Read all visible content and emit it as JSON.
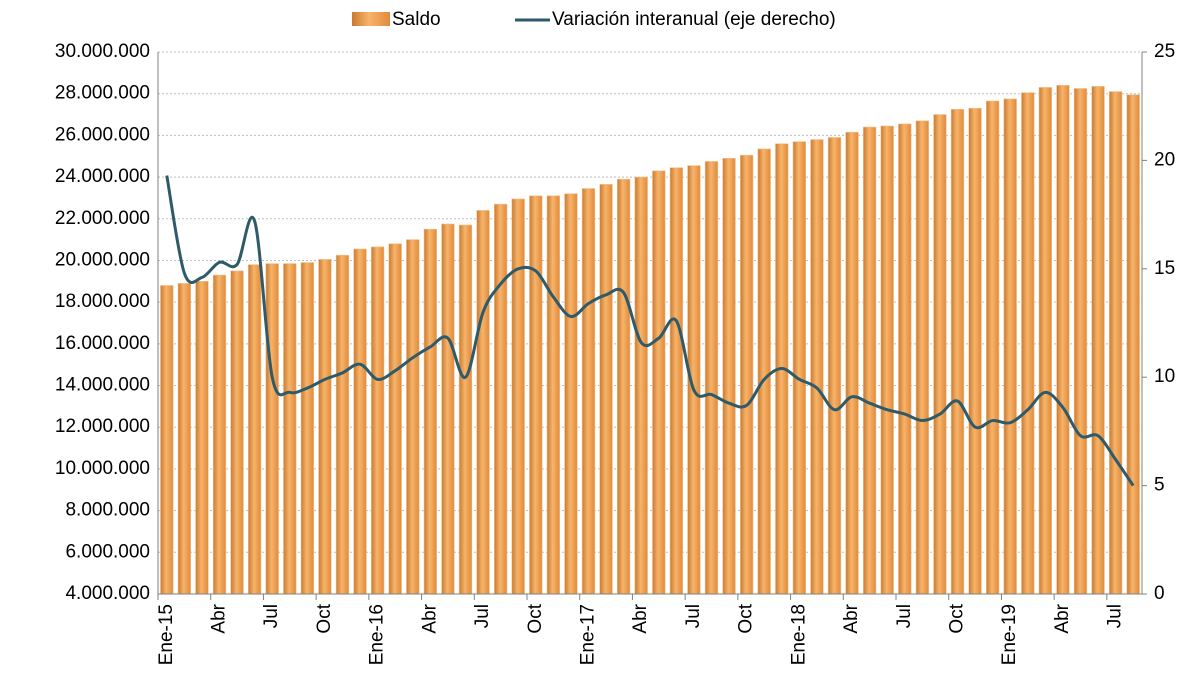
{
  "chart_data": {
    "type": "bar_line",
    "categories": [
      "Ene-15",
      null,
      null,
      "Abr",
      null,
      null,
      "Jul",
      null,
      null,
      "Oct",
      null,
      null,
      "Ene-16",
      null,
      null,
      "Abr",
      null,
      null,
      "Jul",
      null,
      null,
      "Oct",
      null,
      null,
      "Ene-17",
      null,
      null,
      "Abr",
      null,
      null,
      "Jul",
      null,
      null,
      "Oct",
      null,
      null,
      "Ene-18",
      null,
      null,
      "Abr",
      null,
      null,
      "Jul",
      null,
      null,
      "Oct",
      null,
      null,
      "Ene-19",
      null,
      null,
      "Abr",
      null,
      null,
      "Jul",
      null
    ],
    "series": [
      {
        "name": "Saldo",
        "type": "bar",
        "color": "#f0a050",
        "values": [
          18800000,
          18900000,
          19000000,
          19300000,
          19500000,
          19800000,
          19850000,
          19850000,
          19900000,
          20050000,
          20250000,
          20550000,
          20650000,
          20800000,
          21000000,
          21500000,
          21750000,
          21700000,
          22400000,
          22700000,
          22950000,
          23100000,
          23100000,
          23200000,
          23450000,
          23650000,
          23900000,
          24000000,
          24300000,
          24450000,
          24550000,
          24750000,
          24900000,
          25050000,
          25350000,
          25600000,
          25700000,
          25800000,
          25900000,
          26150000,
          26400000,
          26450000,
          26550000,
          26700000,
          27000000,
          27250000,
          27300000,
          27650000,
          27750000,
          28050000,
          28300000,
          28400000,
          28250000,
          28350000,
          28100000,
          27950000
        ]
      },
      {
        "name": "Variación interanual (eje derecho)",
        "type": "line",
        "axis": "y2",
        "color": "#2e5a6a",
        "values": [
          19.3,
          14.8,
          14.6,
          15.3,
          15.2,
          17.2,
          10.0,
          9.3,
          9.5,
          9.9,
          10.2,
          10.6,
          9.9,
          10.3,
          10.9,
          11.4,
          11.8,
          10.0,
          13.0,
          14.3,
          15.0,
          14.9,
          13.7,
          12.8,
          13.4,
          13.8,
          13.9,
          11.6,
          11.8,
          12.6,
          9.4,
          9.2,
          8.8,
          8.7,
          9.9,
          10.4,
          9.9,
          9.5,
          8.5,
          9.1,
          8.8,
          8.5,
          8.3,
          8.0,
          8.3,
          8.9,
          7.7,
          8.0,
          7.9,
          8.5,
          9.3,
          8.6,
          7.3,
          7.3,
          6.2,
          5.0
        ]
      }
    ],
    "ylim": [
      4000000,
      30000000
    ],
    "yticks": [
      {
        "value": 4000000,
        "label": "4.000.000"
      },
      {
        "value": 6000000,
        "label": "6.000.000"
      },
      {
        "value": 8000000,
        "label": "8.000.000"
      },
      {
        "value": 10000000,
        "label": "10.000.000"
      },
      {
        "value": 12000000,
        "label": "12.000.000"
      },
      {
        "value": 14000000,
        "label": "14.000.000"
      },
      {
        "value": 16000000,
        "label": "16.000.000"
      },
      {
        "value": 18000000,
        "label": "18.000.000"
      },
      {
        "value": 20000000,
        "label": "20.000.000"
      },
      {
        "value": 22000000,
        "label": "22.000.000"
      },
      {
        "value": 24000000,
        "label": "24.000.000"
      },
      {
        "value": 26000000,
        "label": "26.000.000"
      },
      {
        "value": 28000000,
        "label": "28.000.000"
      },
      {
        "value": 30000000,
        "label": "30.000.000"
      }
    ],
    "y2lim": [
      0,
      25
    ],
    "y2ticks": [
      0,
      5,
      10,
      15,
      20,
      25
    ],
    "grid": true,
    "legend": "top"
  }
}
